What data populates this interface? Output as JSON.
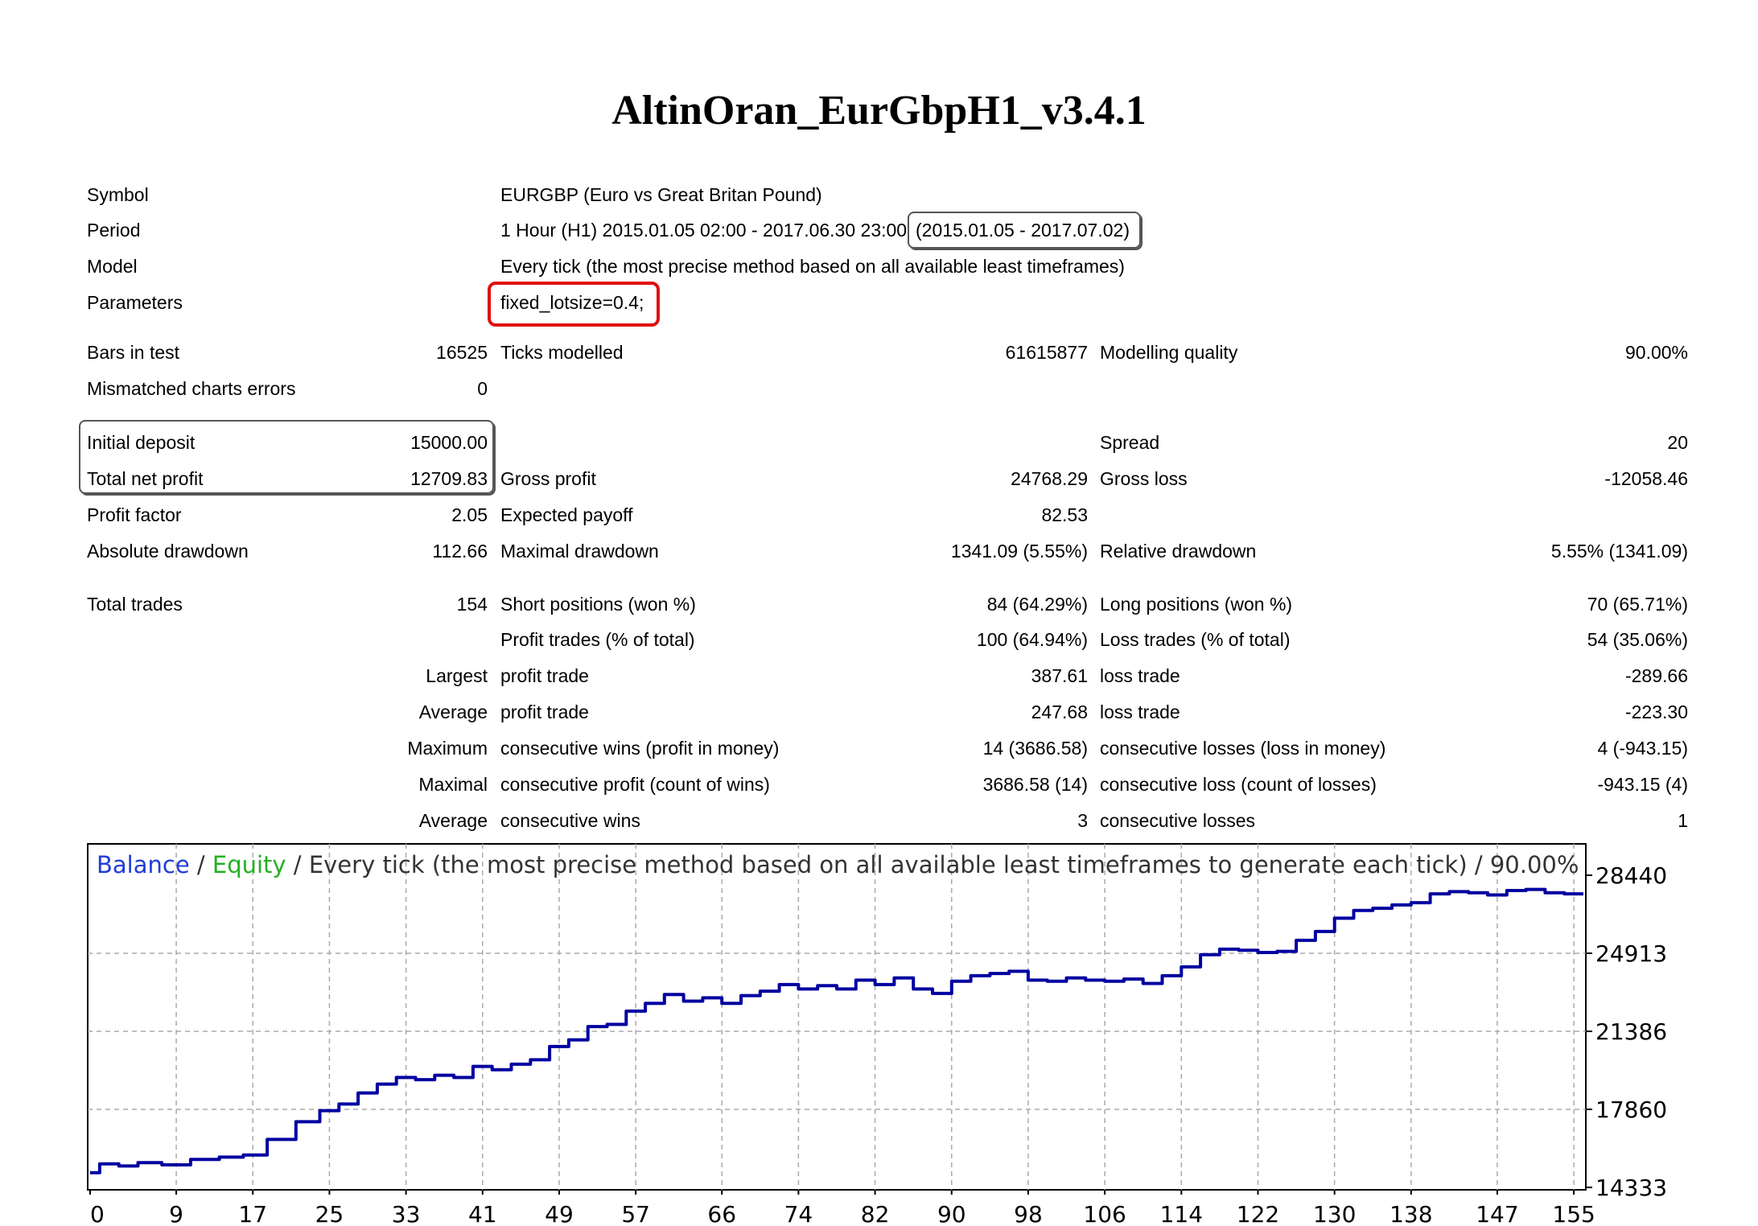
{
  "title": "AltinOran_EurGbpH1_v3.4.1",
  "header": {
    "symbol": {
      "label": "Symbol",
      "value": "EURGBP (Euro vs Great Britan Pound)"
    },
    "period": {
      "label": "Period",
      "value": "1 Hour (H1) 2015.01.05 02:00 - 2017.06.30 23:00",
      "range": "(2015.01.05 - 2017.07.02)"
    },
    "model": {
      "label": "Model",
      "value": "Every tick (the most precise method based on all available least timeframes)"
    },
    "parameters": {
      "label": "Parameters",
      "value": "fixed_lotsize=0.4;"
    }
  },
  "stats": {
    "bars_in_test": {
      "label": "Bars in test",
      "value": "16525"
    },
    "ticks_modelled": {
      "label": "Ticks modelled",
      "value": "61615877"
    },
    "modelling_quality": {
      "label": "Modelling quality",
      "value": "90.00%"
    },
    "mismatched": {
      "label": "Mismatched charts errors",
      "value": "0"
    },
    "initial_deposit": {
      "label": "Initial deposit",
      "value": "15000.00"
    },
    "spread": {
      "label": "Spread",
      "value": "20"
    },
    "total_net_profit": {
      "label": "Total net profit",
      "value": "12709.83"
    },
    "gross_profit": {
      "label": "Gross profit",
      "value": "24768.29"
    },
    "gross_loss": {
      "label": "Gross loss",
      "value": "-12058.46"
    },
    "profit_factor": {
      "label": "Profit factor",
      "value": "2.05"
    },
    "expected_payoff": {
      "label": "Expected payoff",
      "value": "82.53"
    },
    "absolute_drawdown": {
      "label": "Absolute drawdown",
      "value": "112.66"
    },
    "maximal_drawdown": {
      "label": "Maximal drawdown",
      "value": "1341.09 (5.55%)"
    },
    "relative_drawdown": {
      "label": "Relative drawdown",
      "value": "5.55% (1341.09)"
    },
    "total_trades": {
      "label": "Total trades",
      "value": "154"
    },
    "short_positions": {
      "label": "Short positions (won %)",
      "value": "84 (64.29%)"
    },
    "long_positions": {
      "label": "Long positions (won %)",
      "value": "70 (65.71%)"
    },
    "profit_trades": {
      "label": "Profit trades (% of total)",
      "value": "100 (64.94%)"
    },
    "loss_trades": {
      "label": "Loss trades (% of total)",
      "value": "54 (35.06%)"
    },
    "largest": {
      "prefix": "Largest",
      "profit_label": "profit trade",
      "profit_value": "387.61",
      "loss_label": "loss trade",
      "loss_value": "-289.66"
    },
    "average": {
      "prefix": "Average",
      "profit_label": "profit trade",
      "profit_value": "247.68",
      "loss_label": "loss trade",
      "loss_value": "-223.30"
    },
    "maximum": {
      "prefix": "Maximum",
      "profit_label": "consecutive wins (profit in money)",
      "profit_value": "14 (3686.58)",
      "loss_label": "consecutive losses (loss in money)",
      "loss_value": "4 (-943.15)"
    },
    "maximal": {
      "prefix": "Maximal",
      "profit_label": "consecutive profit (count of wins)",
      "profit_value": "3686.58 (14)",
      "loss_label": "consecutive loss (count of losses)",
      "loss_value": "-943.15 (4)"
    },
    "average_consec": {
      "prefix": "Average",
      "profit_label": "consecutive wins",
      "profit_value": "3",
      "loss_label": "consecutive losses",
      "loss_value": "1"
    }
  },
  "chart_data": {
    "type": "line",
    "legend": {
      "balance": "Balance",
      "equity": "Equity",
      "sep": " / ",
      "rest": "Every tick (the most precise method based on all available least timeframes to generate each tick) / 90.00%"
    },
    "x_ticks": [
      "0",
      "9",
      "17",
      "25",
      "33",
      "41",
      "49",
      "57",
      "66",
      "74",
      "82",
      "90",
      "98",
      "106",
      "114",
      "122",
      "130",
      "138",
      "147",
      "155"
    ],
    "y_ticks": [
      "28440",
      "24913",
      "21386",
      "17860",
      "14333"
    ],
    "xlim": [
      0,
      156
    ],
    "ylim": [
      14333,
      28440
    ],
    "series": [
      {
        "name": "Balance",
        "color": "#0000a0",
        "x": [
          0,
          2,
          4,
          6,
          9,
          12,
          15,
          17,
          20,
          23,
          25,
          27,
          29,
          31,
          33,
          35,
          37,
          39,
          41,
          43,
          45,
          47,
          49,
          51,
          53,
          55,
          57,
          59,
          61,
          63,
          65,
          67,
          69,
          71,
          73,
          75,
          77,
          79,
          81,
          83,
          85,
          87,
          89,
          91,
          93,
          95,
          97,
          99,
          101,
          103,
          105,
          107,
          109,
          111,
          113,
          115,
          117,
          119,
          121,
          123,
          125,
          127,
          129,
          131,
          133,
          135,
          137,
          139,
          141,
          143,
          145,
          147,
          149,
          151,
          153,
          155,
          156
        ],
        "y": [
          15000,
          15400,
          15300,
          15450,
          15350,
          15600,
          15700,
          15800,
          16500,
          17300,
          17800,
          18100,
          18600,
          19000,
          19300,
          19200,
          19400,
          19300,
          19800,
          19650,
          19900,
          20100,
          20700,
          21000,
          21600,
          21700,
          22300,
          22650,
          23050,
          22750,
          22900,
          22650,
          23000,
          23200,
          23500,
          23300,
          23450,
          23300,
          23700,
          23500,
          23800,
          23300,
          23100,
          23650,
          23900,
          24000,
          24100,
          23700,
          23650,
          23800,
          23700,
          23650,
          23750,
          23550,
          23900,
          24300,
          24850,
          25100,
          25050,
          24950,
          25000,
          25500,
          25900,
          26500,
          26850,
          26950,
          27100,
          27200,
          27600,
          27700,
          27650,
          27550,
          27750,
          27800,
          27650,
          27600,
          27600
        ]
      }
    ]
  }
}
